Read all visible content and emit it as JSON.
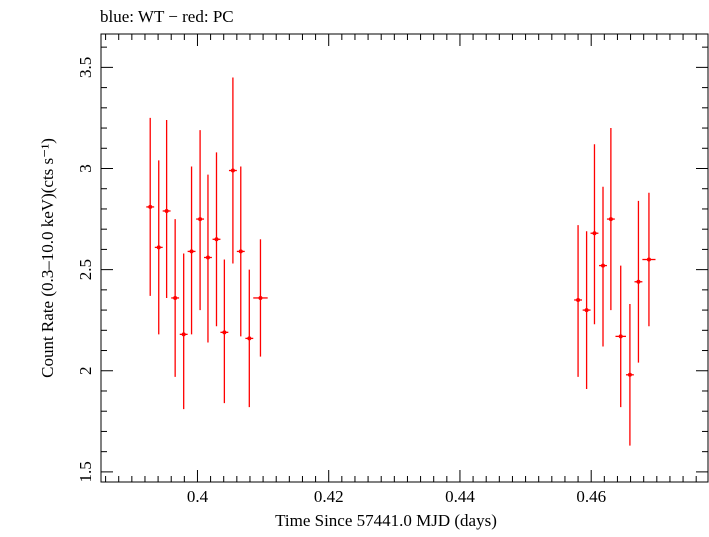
{
  "chart_data": {
    "type": "scatter",
    "title": "blue: WT − red: PC",
    "xlabel": "Time Since 57441.0 MJD (days)",
    "ylabel": "Count Rate (0.3–10.0 keV)(cts s⁻¹)",
    "xlim": [
      0.3853,
      0.4778
    ],
    "ylim": [
      1.45,
      3.665
    ],
    "xticks": [
      0.4,
      0.42,
      0.44,
      0.46
    ],
    "xtick_labels": [
      "0.4",
      "0.42",
      "0.44",
      "0.46"
    ],
    "yticks": [
      1.5,
      2.0,
      2.5,
      3.0,
      3.5
    ],
    "ytick_labels": [
      "1.5",
      "2",
      "2.5",
      "3",
      "3.5"
    ],
    "grid": false,
    "series": [
      {
        "name": "PC",
        "color": "#ff0000",
        "points": [
          {
            "x": 0.3928,
            "y": 2.81,
            "xerr": 0.0006,
            "ylo": 2.37,
            "yhi": 3.25
          },
          {
            "x": 0.3941,
            "y": 2.61,
            "xerr": 0.0006,
            "ylo": 2.18,
            "yhi": 3.04
          },
          {
            "x": 0.3953,
            "y": 2.79,
            "xerr": 0.0006,
            "ylo": 2.36,
            "yhi": 3.24
          },
          {
            "x": 0.3966,
            "y": 2.36,
            "xerr": 0.0006,
            "ylo": 1.97,
            "yhi": 2.75
          },
          {
            "x": 0.3979,
            "y": 2.18,
            "xerr": 0.0006,
            "ylo": 1.81,
            "yhi": 2.58
          },
          {
            "x": 0.3991,
            "y": 2.59,
            "xerr": 0.0006,
            "ylo": 2.18,
            "yhi": 3.01
          },
          {
            "x": 0.4004,
            "y": 2.75,
            "xerr": 0.0006,
            "ylo": 2.3,
            "yhi": 3.19
          },
          {
            "x": 0.4016,
            "y": 2.56,
            "xerr": 0.0006,
            "ylo": 2.14,
            "yhi": 2.97
          },
          {
            "x": 0.4029,
            "y": 2.65,
            "xerr": 0.0006,
            "ylo": 2.22,
            "yhi": 3.08
          },
          {
            "x": 0.4041,
            "y": 2.19,
            "xerr": 0.0006,
            "ylo": 1.84,
            "yhi": 2.55
          },
          {
            "x": 0.4054,
            "y": 2.99,
            "xerr": 0.0006,
            "ylo": 2.53,
            "yhi": 3.45
          },
          {
            "x": 0.4066,
            "y": 2.59,
            "xerr": 0.0006,
            "ylo": 2.17,
            "yhi": 3.01
          },
          {
            "x": 0.4079,
            "y": 2.16,
            "xerr": 0.0006,
            "ylo": 1.82,
            "yhi": 2.5
          },
          {
            "x": 0.4096,
            "y": 2.36,
            "xerr": 0.0011,
            "ylo": 2.07,
            "yhi": 2.65
          },
          {
            "x": 0.458,
            "y": 2.35,
            "xerr": 0.0006,
            "ylo": 1.97,
            "yhi": 2.72
          },
          {
            "x": 0.4593,
            "y": 2.3,
            "xerr": 0.0006,
            "ylo": 1.91,
            "yhi": 2.69
          },
          {
            "x": 0.4605,
            "y": 2.68,
            "xerr": 0.0006,
            "ylo": 2.23,
            "yhi": 3.12
          },
          {
            "x": 0.4618,
            "y": 2.52,
            "xerr": 0.0006,
            "ylo": 2.12,
            "yhi": 2.91
          },
          {
            "x": 0.463,
            "y": 2.75,
            "xerr": 0.0006,
            "ylo": 2.3,
            "yhi": 3.2
          },
          {
            "x": 0.4645,
            "y": 2.17,
            "xerr": 0.0008,
            "ylo": 1.82,
            "yhi": 2.52
          },
          {
            "x": 0.4659,
            "y": 1.98,
            "xerr": 0.0006,
            "ylo": 1.63,
            "yhi": 2.33
          },
          {
            "x": 0.4672,
            "y": 2.44,
            "xerr": 0.0006,
            "ylo": 2.04,
            "yhi": 2.84
          },
          {
            "x": 0.4688,
            "y": 2.55,
            "xerr": 0.001,
            "ylo": 2.22,
            "yhi": 2.88
          }
        ]
      }
    ]
  }
}
